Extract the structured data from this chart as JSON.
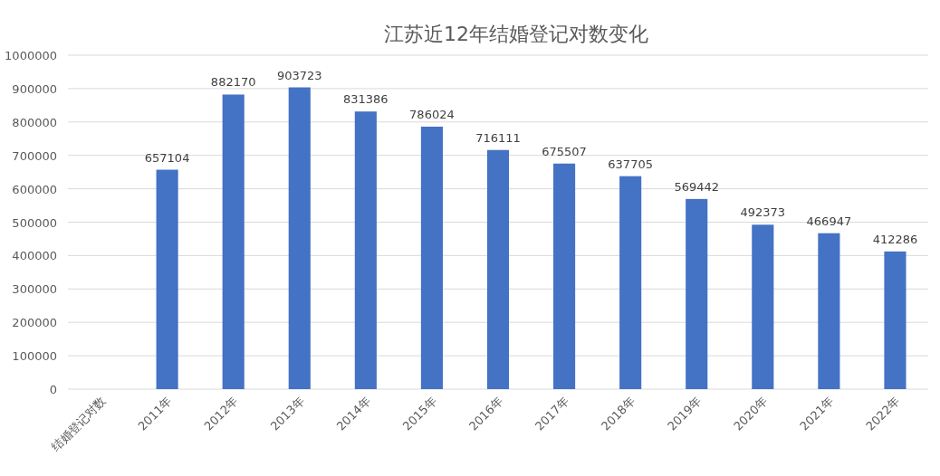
{
  "chart_data": {
    "type": "bar",
    "title": "江苏近12年结婚登记对数变化",
    "categories": [
      "结婚登记对数",
      "2011年",
      "2012年",
      "2013年",
      "2014年",
      "2015年",
      "2016年",
      "2017年",
      "2018年",
      "2019年",
      "2020年",
      "2021年",
      "2022年"
    ],
    "values": [
      null,
      657104,
      882170,
      903723,
      831386,
      786024,
      716111,
      675507,
      637705,
      569442,
      492373,
      466947,
      412286
    ],
    "color": "#4472c4",
    "ylim": [
      0,
      1000000
    ],
    "yticks": [
      0,
      100000,
      200000,
      300000,
      400000,
      500000,
      600000,
      700000,
      800000,
      900000,
      1000000
    ],
    "grid": "y",
    "data_labels": true
  }
}
